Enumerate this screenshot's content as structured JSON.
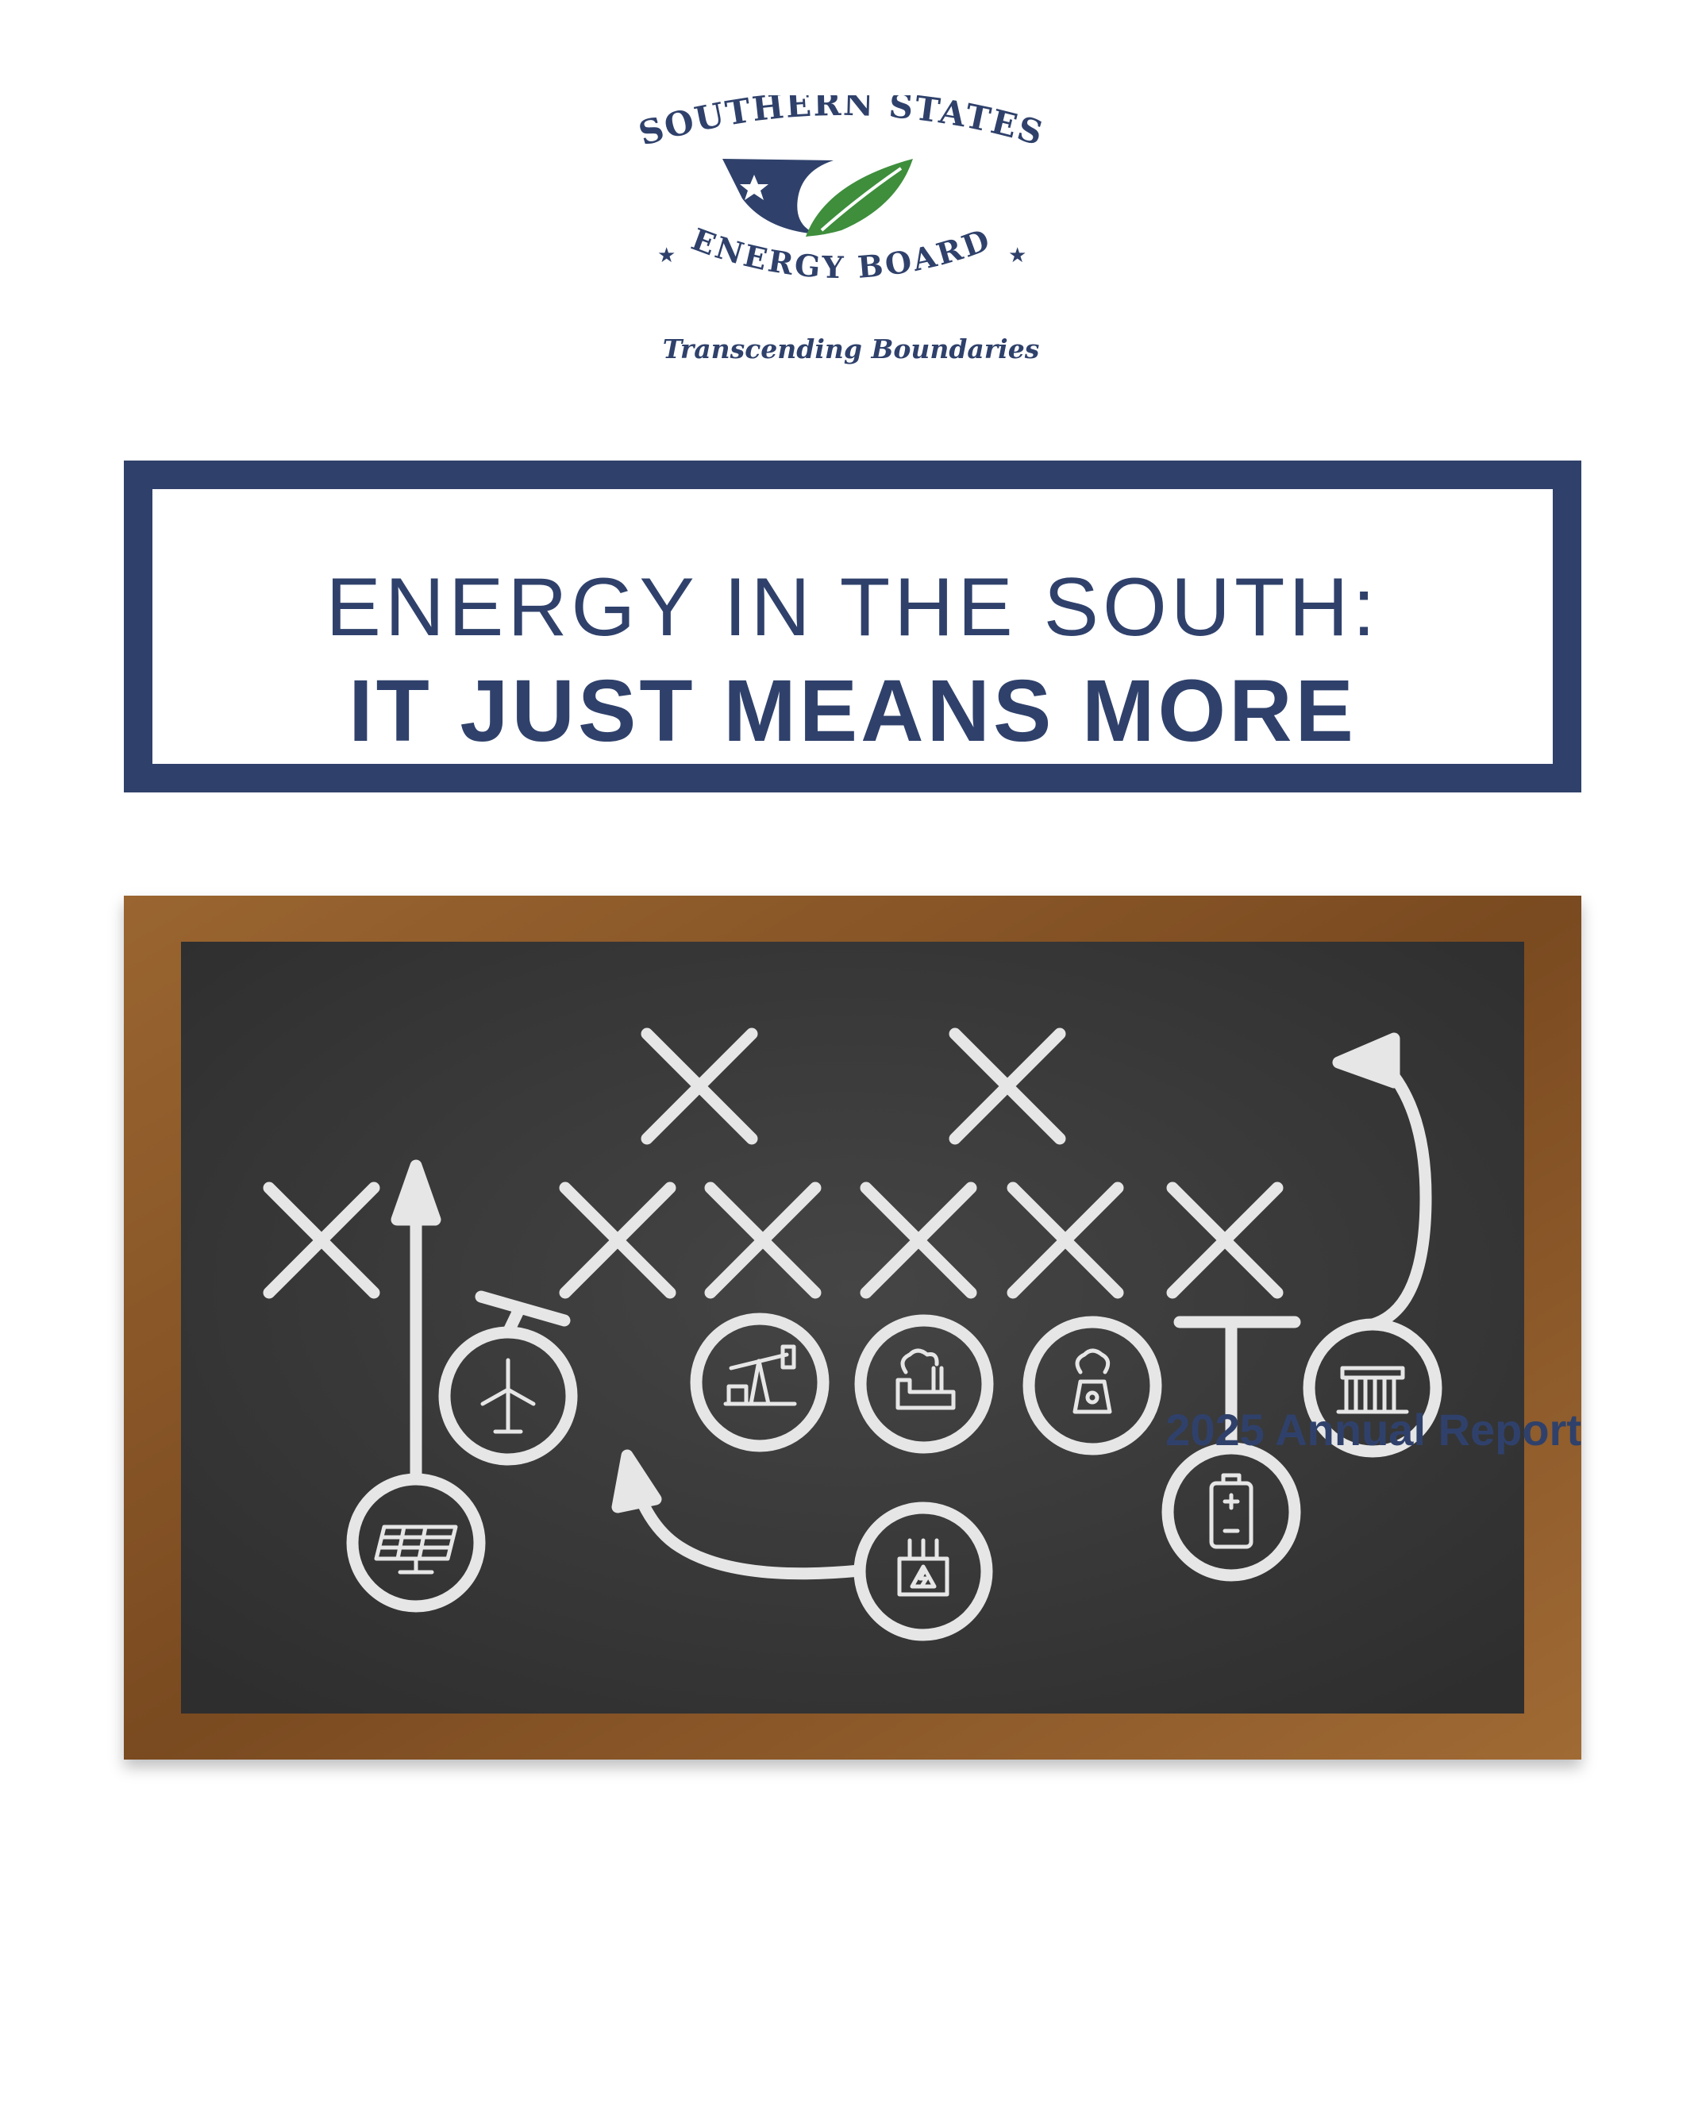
{
  "logo": {
    "top_text": "SOUTHERN STATES",
    "bottom_text": "ENERGY BOARD",
    "tagline": "Transcending Boundaries"
  },
  "title": {
    "line1": "ENERGY IN THE SOUTH:",
    "line2": "IT JUST MEANS MORE"
  },
  "board": {
    "icons": [
      "solar-panel",
      "wind-turbine",
      "oil-pump",
      "factory",
      "nuclear-plant",
      "battery",
      "hydro-dam",
      "transformer"
    ]
  },
  "footer": {
    "report_label": "2025 Annual Report"
  },
  "colors": {
    "navy": "#2f416b",
    "green": "#3e8e3c",
    "chalkboard": "#3a3a3a",
    "frame": "#8a5a2b",
    "chalk": "#e6e6e6"
  }
}
